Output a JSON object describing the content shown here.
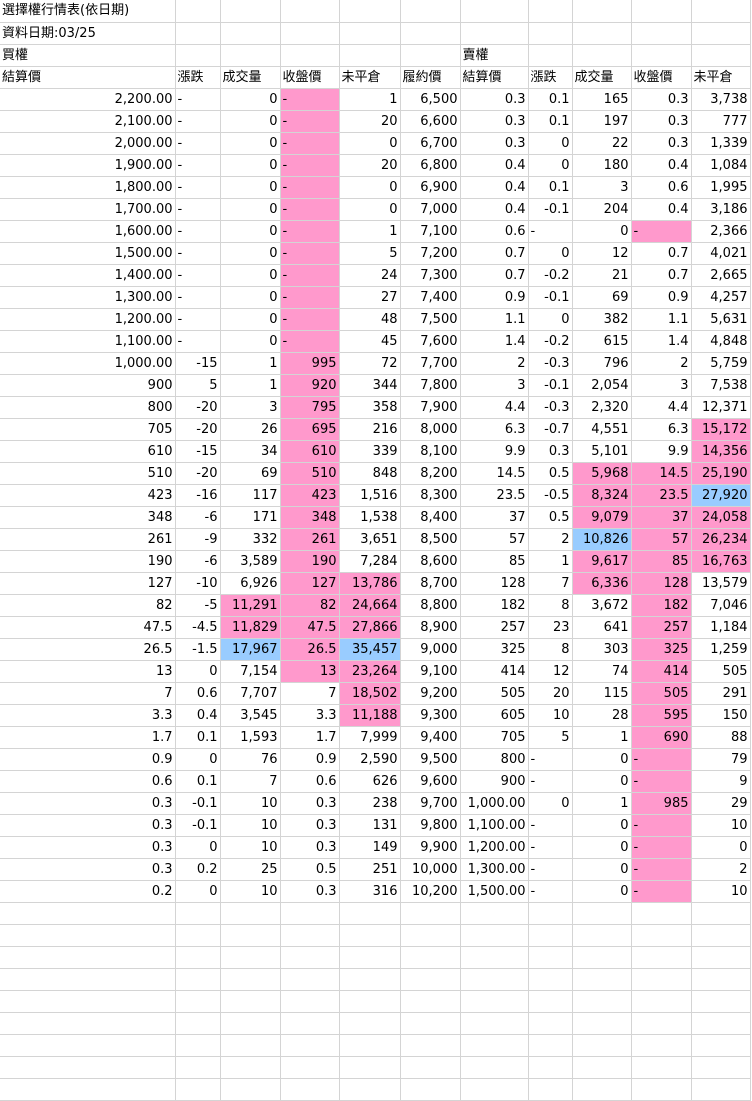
{
  "title": "選擇權行情表(依日期)",
  "date_line": "資料日期:03/25",
  "call_label": "買權",
  "put_label": "賣權",
  "headers": [
    "結算價",
    "漲跌",
    "成交量",
    "收盤價",
    "未平倉",
    "履約價",
    "結算價",
    "漲跌",
    "成交量",
    "收盤價",
    "未平倉"
  ],
  "highlight_colors": {
    "pink": "#ff99cc",
    "blue": "#99ccff"
  },
  "rows": [
    [
      [
        "2,200.00",
        ""
      ],
      [
        "-",
        ""
      ],
      [
        "0",
        ""
      ],
      [
        "-",
        "p"
      ],
      [
        "1",
        ""
      ],
      [
        "6,500",
        ""
      ],
      [
        "0.3",
        ""
      ],
      [
        "0.1",
        ""
      ],
      [
        "165",
        ""
      ],
      [
        "0.3",
        ""
      ],
      [
        "3,738",
        ""
      ]
    ],
    [
      [
        "2,100.00",
        ""
      ],
      [
        "-",
        ""
      ],
      [
        "0",
        ""
      ],
      [
        "-",
        "p"
      ],
      [
        "20",
        ""
      ],
      [
        "6,600",
        ""
      ],
      [
        "0.3",
        ""
      ],
      [
        "0.1",
        ""
      ],
      [
        "197",
        ""
      ],
      [
        "0.3",
        ""
      ],
      [
        "777",
        ""
      ]
    ],
    [
      [
        "2,000.00",
        ""
      ],
      [
        "-",
        ""
      ],
      [
        "0",
        ""
      ],
      [
        "-",
        "p"
      ],
      [
        "0",
        ""
      ],
      [
        "6,700",
        ""
      ],
      [
        "0.3",
        ""
      ],
      [
        "0",
        ""
      ],
      [
        "22",
        ""
      ],
      [
        "0.3",
        ""
      ],
      [
        "1,339",
        ""
      ]
    ],
    [
      [
        "1,900.00",
        ""
      ],
      [
        "-",
        ""
      ],
      [
        "0",
        ""
      ],
      [
        "-",
        "p"
      ],
      [
        "20",
        ""
      ],
      [
        "6,800",
        ""
      ],
      [
        "0.4",
        ""
      ],
      [
        "0",
        ""
      ],
      [
        "180",
        ""
      ],
      [
        "0.4",
        ""
      ],
      [
        "1,084",
        ""
      ]
    ],
    [
      [
        "1,800.00",
        ""
      ],
      [
        "-",
        ""
      ],
      [
        "0",
        ""
      ],
      [
        "-",
        "p"
      ],
      [
        "0",
        ""
      ],
      [
        "6,900",
        ""
      ],
      [
        "0.4",
        ""
      ],
      [
        "0.1",
        ""
      ],
      [
        "3",
        ""
      ],
      [
        "0.6",
        ""
      ],
      [
        "1,995",
        ""
      ]
    ],
    [
      [
        "1,700.00",
        ""
      ],
      [
        "-",
        ""
      ],
      [
        "0",
        ""
      ],
      [
        "-",
        "p"
      ],
      [
        "0",
        ""
      ],
      [
        "7,000",
        ""
      ],
      [
        "0.4",
        ""
      ],
      [
        "-0.1",
        ""
      ],
      [
        "204",
        ""
      ],
      [
        "0.4",
        ""
      ],
      [
        "3,186",
        ""
      ]
    ],
    [
      [
        "1,600.00",
        ""
      ],
      [
        "-",
        ""
      ],
      [
        "0",
        ""
      ],
      [
        "-",
        "p"
      ],
      [
        "1",
        ""
      ],
      [
        "7,100",
        ""
      ],
      [
        "0.6",
        ""
      ],
      [
        "-",
        ""
      ],
      [
        "0",
        ""
      ],
      [
        "-",
        "p"
      ],
      [
        "2,366",
        ""
      ]
    ],
    [
      [
        "1,500.00",
        ""
      ],
      [
        "-",
        ""
      ],
      [
        "0",
        ""
      ],
      [
        "-",
        "p"
      ],
      [
        "5",
        ""
      ],
      [
        "7,200",
        ""
      ],
      [
        "0.7",
        ""
      ],
      [
        "0",
        ""
      ],
      [
        "12",
        ""
      ],
      [
        "0.7",
        ""
      ],
      [
        "4,021",
        ""
      ]
    ],
    [
      [
        "1,400.00",
        ""
      ],
      [
        "-",
        ""
      ],
      [
        "0",
        ""
      ],
      [
        "-",
        "p"
      ],
      [
        "24",
        ""
      ],
      [
        "7,300",
        ""
      ],
      [
        "0.7",
        ""
      ],
      [
        "-0.2",
        ""
      ],
      [
        "21",
        ""
      ],
      [
        "0.7",
        ""
      ],
      [
        "2,665",
        ""
      ]
    ],
    [
      [
        "1,300.00",
        ""
      ],
      [
        "-",
        ""
      ],
      [
        "0",
        ""
      ],
      [
        "-",
        "p"
      ],
      [
        "27",
        ""
      ],
      [
        "7,400",
        ""
      ],
      [
        "0.9",
        ""
      ],
      [
        "-0.1",
        ""
      ],
      [
        "69",
        ""
      ],
      [
        "0.9",
        ""
      ],
      [
        "4,257",
        ""
      ]
    ],
    [
      [
        "1,200.00",
        ""
      ],
      [
        "-",
        ""
      ],
      [
        "0",
        ""
      ],
      [
        "-",
        "p"
      ],
      [
        "48",
        ""
      ],
      [
        "7,500",
        ""
      ],
      [
        "1.1",
        ""
      ],
      [
        "0",
        ""
      ],
      [
        "382",
        ""
      ],
      [
        "1.1",
        ""
      ],
      [
        "5,631",
        ""
      ]
    ],
    [
      [
        "1,100.00",
        ""
      ],
      [
        "-",
        ""
      ],
      [
        "0",
        ""
      ],
      [
        "-",
        "p"
      ],
      [
        "45",
        ""
      ],
      [
        "7,600",
        ""
      ],
      [
        "1.4",
        ""
      ],
      [
        "-0.2",
        ""
      ],
      [
        "615",
        ""
      ],
      [
        "1.4",
        ""
      ],
      [
        "4,848",
        ""
      ]
    ],
    [
      [
        "1,000.00",
        ""
      ],
      [
        "-15",
        ""
      ],
      [
        "1",
        ""
      ],
      [
        "995",
        "p"
      ],
      [
        "72",
        ""
      ],
      [
        "7,700",
        ""
      ],
      [
        "2",
        ""
      ],
      [
        "-0.3",
        ""
      ],
      [
        "796",
        ""
      ],
      [
        "2",
        ""
      ],
      [
        "5,759",
        ""
      ]
    ],
    [
      [
        "900",
        ""
      ],
      [
        "5",
        ""
      ],
      [
        "1",
        ""
      ],
      [
        "920",
        "p"
      ],
      [
        "344",
        ""
      ],
      [
        "7,800",
        ""
      ],
      [
        "3",
        ""
      ],
      [
        "-0.1",
        ""
      ],
      [
        "2,054",
        ""
      ],
      [
        "3",
        ""
      ],
      [
        "7,538",
        ""
      ]
    ],
    [
      [
        "800",
        ""
      ],
      [
        "-20",
        ""
      ],
      [
        "3",
        ""
      ],
      [
        "795",
        "p"
      ],
      [
        "358",
        ""
      ],
      [
        "7,900",
        ""
      ],
      [
        "4.4",
        ""
      ],
      [
        "-0.3",
        ""
      ],
      [
        "2,320",
        ""
      ],
      [
        "4.4",
        ""
      ],
      [
        "12,371",
        ""
      ]
    ],
    [
      [
        "705",
        ""
      ],
      [
        "-20",
        ""
      ],
      [
        "26",
        ""
      ],
      [
        "695",
        "p"
      ],
      [
        "216",
        ""
      ],
      [
        "8,000",
        ""
      ],
      [
        "6.3",
        ""
      ],
      [
        "-0.7",
        ""
      ],
      [
        "4,551",
        ""
      ],
      [
        "6.3",
        ""
      ],
      [
        "15,172",
        "p"
      ]
    ],
    [
      [
        "610",
        ""
      ],
      [
        "-15",
        ""
      ],
      [
        "34",
        ""
      ],
      [
        "610",
        "p"
      ],
      [
        "339",
        ""
      ],
      [
        "8,100",
        ""
      ],
      [
        "9.9",
        ""
      ],
      [
        "0.3",
        ""
      ],
      [
        "5,101",
        ""
      ],
      [
        "9.9",
        ""
      ],
      [
        "14,356",
        "p"
      ]
    ],
    [
      [
        "510",
        ""
      ],
      [
        "-20",
        ""
      ],
      [
        "69",
        ""
      ],
      [
        "510",
        "p"
      ],
      [
        "848",
        ""
      ],
      [
        "8,200",
        ""
      ],
      [
        "14.5",
        ""
      ],
      [
        "0.5",
        ""
      ],
      [
        "5,968",
        "p"
      ],
      [
        "14.5",
        "p"
      ],
      [
        "25,190",
        "p"
      ]
    ],
    [
      [
        "423",
        ""
      ],
      [
        "-16",
        ""
      ],
      [
        "117",
        ""
      ],
      [
        "423",
        "p"
      ],
      [
        "1,516",
        ""
      ],
      [
        "8,300",
        ""
      ],
      [
        "23.5",
        ""
      ],
      [
        "-0.5",
        ""
      ],
      [
        "8,324",
        "p"
      ],
      [
        "23.5",
        "p"
      ],
      [
        "27,920",
        "b"
      ]
    ],
    [
      [
        "348",
        ""
      ],
      [
        "-6",
        ""
      ],
      [
        "171",
        ""
      ],
      [
        "348",
        "p"
      ],
      [
        "1,538",
        ""
      ],
      [
        "8,400",
        ""
      ],
      [
        "37",
        ""
      ],
      [
        "0.5",
        ""
      ],
      [
        "9,079",
        "p"
      ],
      [
        "37",
        "p"
      ],
      [
        "24,058",
        "p"
      ]
    ],
    [
      [
        "261",
        ""
      ],
      [
        "-9",
        ""
      ],
      [
        "332",
        ""
      ],
      [
        "261",
        "p"
      ],
      [
        "3,651",
        ""
      ],
      [
        "8,500",
        ""
      ],
      [
        "57",
        ""
      ],
      [
        "2",
        ""
      ],
      [
        "10,826",
        "b"
      ],
      [
        "57",
        "p"
      ],
      [
        "26,234",
        "p"
      ]
    ],
    [
      [
        "190",
        ""
      ],
      [
        "-6",
        ""
      ],
      [
        "3,589",
        ""
      ],
      [
        "190",
        "p"
      ],
      [
        "7,284",
        ""
      ],
      [
        "8,600",
        ""
      ],
      [
        "85",
        ""
      ],
      [
        "1",
        ""
      ],
      [
        "9,617",
        "p"
      ],
      [
        "85",
        "p"
      ],
      [
        "16,763",
        "p"
      ]
    ],
    [
      [
        "127",
        ""
      ],
      [
        "-10",
        ""
      ],
      [
        "6,926",
        ""
      ],
      [
        "127",
        "p"
      ],
      [
        "13,786",
        "p"
      ],
      [
        "8,700",
        ""
      ],
      [
        "128",
        ""
      ],
      [
        "7",
        ""
      ],
      [
        "6,336",
        "p"
      ],
      [
        "128",
        "p"
      ],
      [
        "13,579",
        ""
      ]
    ],
    [
      [
        "82",
        ""
      ],
      [
        "-5",
        ""
      ],
      [
        "11,291",
        "p"
      ],
      [
        "82",
        "p"
      ],
      [
        "24,664",
        "p"
      ],
      [
        "8,800",
        ""
      ],
      [
        "182",
        ""
      ],
      [
        "8",
        ""
      ],
      [
        "3,672",
        ""
      ],
      [
        "182",
        "p"
      ],
      [
        "7,046",
        ""
      ]
    ],
    [
      [
        "47.5",
        ""
      ],
      [
        "-4.5",
        ""
      ],
      [
        "11,829",
        "p"
      ],
      [
        "47.5",
        "p"
      ],
      [
        "27,866",
        "p"
      ],
      [
        "8,900",
        ""
      ],
      [
        "257",
        ""
      ],
      [
        "23",
        ""
      ],
      [
        "641",
        ""
      ],
      [
        "257",
        "p"
      ],
      [
        "1,184",
        ""
      ]
    ],
    [
      [
        "26.5",
        ""
      ],
      [
        "-1.5",
        ""
      ],
      [
        "17,967",
        "b"
      ],
      [
        "26.5",
        "p"
      ],
      [
        "35,457",
        "b"
      ],
      [
        "9,000",
        ""
      ],
      [
        "325",
        ""
      ],
      [
        "8",
        ""
      ],
      [
        "303",
        ""
      ],
      [
        "325",
        "p"
      ],
      [
        "1,259",
        ""
      ]
    ],
    [
      [
        "13",
        ""
      ],
      [
        "0",
        ""
      ],
      [
        "7,154",
        ""
      ],
      [
        "13",
        "p"
      ],
      [
        "23,264",
        "p"
      ],
      [
        "9,100",
        ""
      ],
      [
        "414",
        ""
      ],
      [
        "12",
        ""
      ],
      [
        "74",
        ""
      ],
      [
        "414",
        "p"
      ],
      [
        "505",
        ""
      ]
    ],
    [
      [
        "7",
        ""
      ],
      [
        "0.6",
        ""
      ],
      [
        "7,707",
        ""
      ],
      [
        "7",
        ""
      ],
      [
        "18,502",
        "p"
      ],
      [
        "9,200",
        ""
      ],
      [
        "505",
        ""
      ],
      [
        "20",
        ""
      ],
      [
        "115",
        ""
      ],
      [
        "505",
        "p"
      ],
      [
        "291",
        ""
      ]
    ],
    [
      [
        "3.3",
        ""
      ],
      [
        "0.4",
        ""
      ],
      [
        "3,545",
        ""
      ],
      [
        "3.3",
        ""
      ],
      [
        "11,188",
        "p"
      ],
      [
        "9,300",
        ""
      ],
      [
        "605",
        ""
      ],
      [
        "10",
        ""
      ],
      [
        "28",
        ""
      ],
      [
        "595",
        "p"
      ],
      [
        "150",
        ""
      ]
    ],
    [
      [
        "1.7",
        ""
      ],
      [
        "0.1",
        ""
      ],
      [
        "1,593",
        ""
      ],
      [
        "1.7",
        ""
      ],
      [
        "7,999",
        ""
      ],
      [
        "9,400",
        ""
      ],
      [
        "705",
        ""
      ],
      [
        "5",
        ""
      ],
      [
        "1",
        ""
      ],
      [
        "690",
        "p"
      ],
      [
        "88",
        ""
      ]
    ],
    [
      [
        "0.9",
        ""
      ],
      [
        "0",
        ""
      ],
      [
        "76",
        ""
      ],
      [
        "0.9",
        ""
      ],
      [
        "2,590",
        ""
      ],
      [
        "9,500",
        ""
      ],
      [
        "800",
        ""
      ],
      [
        "-",
        ""
      ],
      [
        "0",
        ""
      ],
      [
        "-",
        "p"
      ],
      [
        "79",
        ""
      ]
    ],
    [
      [
        "0.6",
        ""
      ],
      [
        "0.1",
        ""
      ],
      [
        "7",
        ""
      ],
      [
        "0.6",
        ""
      ],
      [
        "626",
        ""
      ],
      [
        "9,600",
        ""
      ],
      [
        "900",
        ""
      ],
      [
        "-",
        ""
      ],
      [
        "0",
        ""
      ],
      [
        "-",
        "p"
      ],
      [
        "9",
        ""
      ]
    ],
    [
      [
        "0.3",
        ""
      ],
      [
        "-0.1",
        ""
      ],
      [
        "10",
        ""
      ],
      [
        "0.3",
        ""
      ],
      [
        "238",
        ""
      ],
      [
        "9,700",
        ""
      ],
      [
        "1,000.00",
        ""
      ],
      [
        "0",
        ""
      ],
      [
        "1",
        ""
      ],
      [
        "985",
        "p"
      ],
      [
        "29",
        ""
      ]
    ],
    [
      [
        "0.3",
        ""
      ],
      [
        "-0.1",
        ""
      ],
      [
        "10",
        ""
      ],
      [
        "0.3",
        ""
      ],
      [
        "131",
        ""
      ],
      [
        "9,800",
        ""
      ],
      [
        "1,100.00",
        ""
      ],
      [
        "-",
        ""
      ],
      [
        "0",
        ""
      ],
      [
        "-",
        "p"
      ],
      [
        "10",
        ""
      ]
    ],
    [
      [
        "0.3",
        ""
      ],
      [
        "0",
        ""
      ],
      [
        "10",
        ""
      ],
      [
        "0.3",
        ""
      ],
      [
        "149",
        ""
      ],
      [
        "9,900",
        ""
      ],
      [
        "1,200.00",
        ""
      ],
      [
        "-",
        ""
      ],
      [
        "0",
        ""
      ],
      [
        "-",
        "p"
      ],
      [
        "0",
        ""
      ]
    ],
    [
      [
        "0.3",
        ""
      ],
      [
        "0.2",
        ""
      ],
      [
        "25",
        ""
      ],
      [
        "0.5",
        ""
      ],
      [
        "251",
        ""
      ],
      [
        "10,000",
        ""
      ],
      [
        "1,300.00",
        ""
      ],
      [
        "-",
        ""
      ],
      [
        "0",
        ""
      ],
      [
        "-",
        "p"
      ],
      [
        "2",
        ""
      ]
    ],
    [
      [
        "0.2",
        ""
      ],
      [
        "0",
        ""
      ],
      [
        "10",
        ""
      ],
      [
        "0.3",
        ""
      ],
      [
        "316",
        ""
      ],
      [
        "10,200",
        ""
      ],
      [
        "1,500.00",
        ""
      ],
      [
        "-",
        ""
      ],
      [
        "0",
        ""
      ],
      [
        "-",
        "p"
      ],
      [
        "10",
        ""
      ]
    ]
  ]
}
